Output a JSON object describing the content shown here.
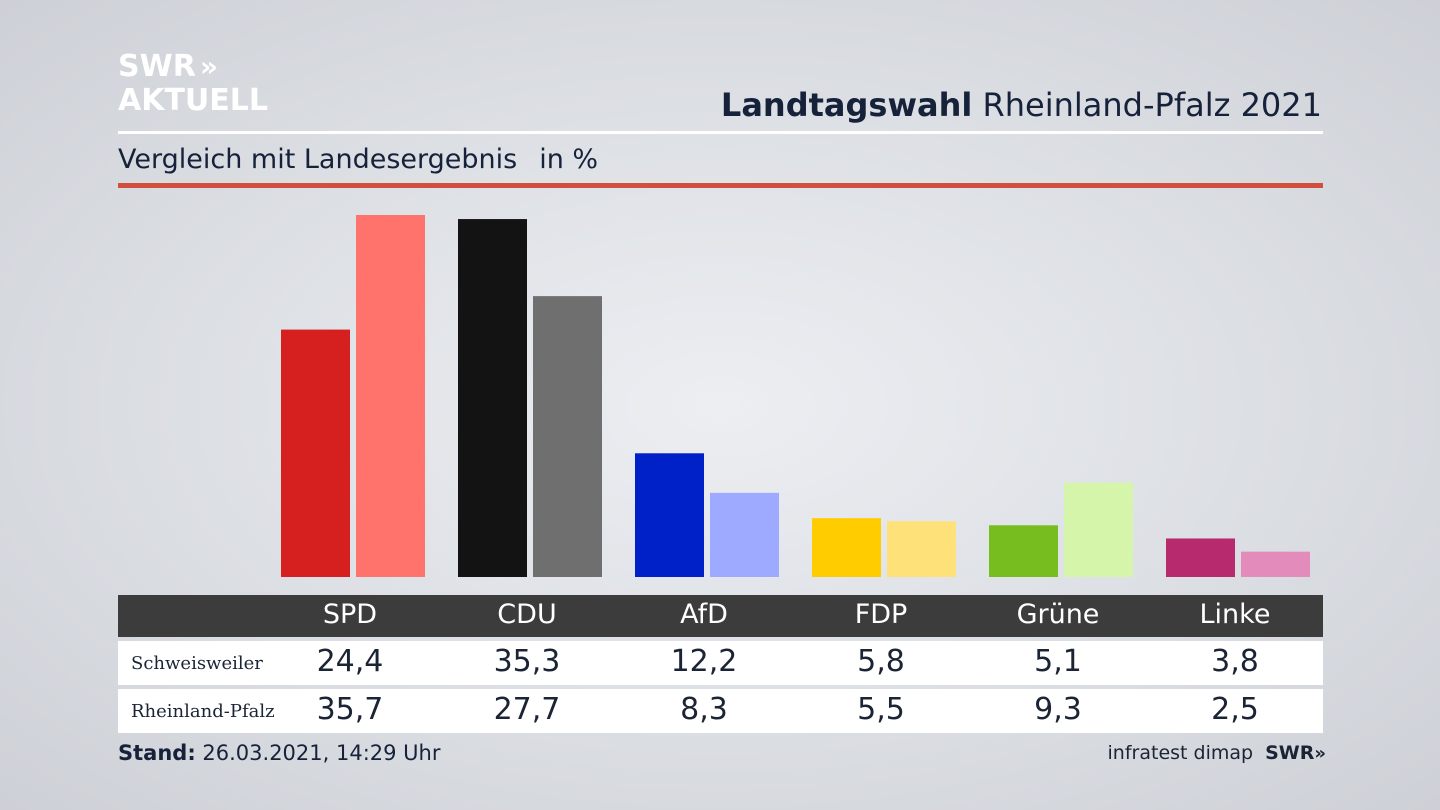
{
  "logo": {
    "line1": "SWR",
    "line2": "AKTUELL",
    "chevrons": "»"
  },
  "header": {
    "title_bold": "Landtagswahl",
    "title_rest": " Rheinland-Pfalz 2021"
  },
  "subtitle": {
    "text": "Vergleich mit Landesergebnis",
    "unit": "in %"
  },
  "colors": {
    "rule_red": "#d0503d",
    "table_header": "#3c3c3c"
  },
  "chart_data": {
    "type": "bar",
    "categories": [
      "SPD",
      "CDU",
      "AfD",
      "FDP",
      "Grüne",
      "Linke"
    ],
    "series": [
      {
        "name": "Schweisweiler",
        "values": [
          24.4,
          35.3,
          12.2,
          5.8,
          5.1,
          3.8
        ],
        "colors": [
          "#d61f1f",
          "#131313",
          "#0020c8",
          "#ffcc00",
          "#78bd1f",
          "#b82a6e"
        ]
      },
      {
        "name": "Rheinland-Pfalz",
        "values": [
          35.7,
          27.7,
          8.3,
          5.5,
          9.3,
          2.5
        ],
        "colors": [
          "#ff736c",
          "#706f6f",
          "#9eaaff",
          "#ffe17a",
          "#d5f5aa",
          "#e38bba"
        ]
      }
    ],
    "ylim": [
      0,
      35.7
    ],
    "grid": false,
    "legend": "table-below"
  },
  "table": {
    "headers": [
      "SPD",
      "CDU",
      "AfD",
      "FDP",
      "Grüne",
      "Linke"
    ],
    "rows": [
      {
        "label": "Schweisweiler",
        "values": [
          "24,4",
          "35,3",
          "12,2",
          "5,8",
          "5,1",
          "3,8"
        ]
      },
      {
        "label": "Rheinland-Pfalz",
        "values": [
          "35,7",
          "27,7",
          "8,3",
          "5,5",
          "9,3",
          "2,5"
        ]
      }
    ]
  },
  "footer": {
    "stand_label": "Stand:",
    "stand_value": " 26.03.2021, 14:29 Uhr",
    "source": "infratest dimap",
    "brand": "SWR",
    "brand_chevrons": "»"
  }
}
